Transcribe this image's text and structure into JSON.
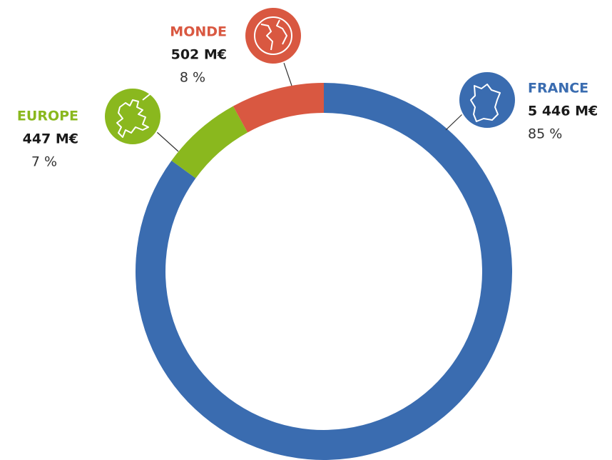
{
  "chart_data": {
    "type": "donut",
    "categories": [
      "FRANCE",
      "EUROPE",
      "MONDE"
    ],
    "values": [
      85,
      7,
      8
    ],
    "value_labels": [
      "85 %",
      "7 %",
      "8 %"
    ],
    "amount_labels": [
      "5 446 M€",
      "447 M€",
      "502 M€"
    ],
    "colors": [
      "#3a6cb0",
      "#8ab81e",
      "#d95841"
    ]
  }
}
